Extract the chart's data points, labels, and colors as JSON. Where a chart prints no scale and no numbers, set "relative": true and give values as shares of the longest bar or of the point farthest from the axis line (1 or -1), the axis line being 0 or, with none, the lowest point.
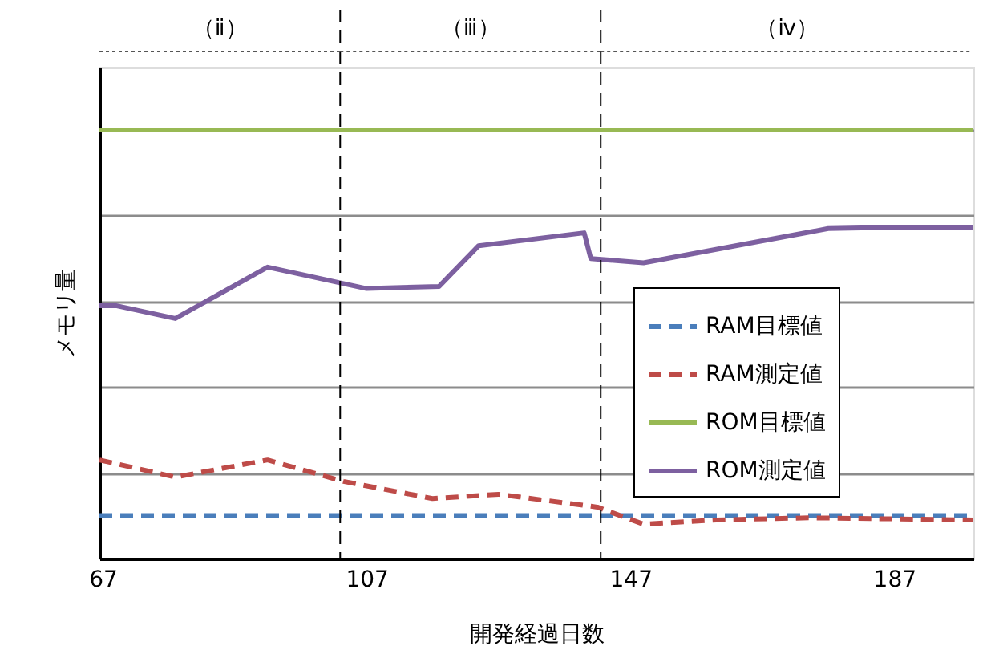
{
  "chart_data": {
    "type": "line",
    "relative": true,
    "xlabel": "開発経過日数",
    "ylabel": "メモリ量",
    "xlim": [
      66.5,
      199
    ],
    "xticks": [
      67,
      107,
      147,
      187
    ],
    "grid": "y",
    "legend": "right",
    "series": [
      {
        "name": "RAM目標値",
        "color": "#4a7ebb",
        "line_style": "dashed",
        "x": [
          66.5,
          199
        ],
        "values": [
          0.1,
          0.1
        ]
      },
      {
        "name": "RAM測定値",
        "color": "#be4b48",
        "line_style": "dashed",
        "x": [
          66.5,
          78,
          92,
          103.5,
          117,
          127,
          142,
          149,
          160,
          174,
          199
        ],
        "values": [
          0.23,
          0.19,
          0.23,
          0.18,
          0.14,
          0.15,
          0.12,
          0.08,
          0.09,
          0.095,
          0.09
        ]
      },
      {
        "name": "ROM目標値",
        "color": "#98b954",
        "line_style": "solid",
        "x": [
          66.5,
          199
        ],
        "values": [
          1,
          1
        ]
      },
      {
        "name": "ROM測定値",
        "color": "#7d60a0",
        "line_style": "solid",
        "x": [
          66.5,
          69,
          78,
          92,
          107,
          118,
          124,
          140,
          141,
          149,
          177,
          187,
          199
        ],
        "values": [
          0.59,
          0.59,
          0.56,
          0.68,
          0.63,
          0.635,
          0.73,
          0.76,
          0.7,
          0.69,
          0.77,
          0.773,
          0.773
        ]
      }
    ],
    "ref_lines": [
      {
        "axis": "x",
        "value": 103,
        "color": "#000000",
        "line_style": "dashed"
      },
      {
        "axis": "x",
        "value": 142.5,
        "color": "#000000",
        "line_style": "dashed"
      }
    ],
    "annotations": [
      "（ⅱ）",
      "（ⅲ）",
      "（ⅳ）"
    ]
  }
}
